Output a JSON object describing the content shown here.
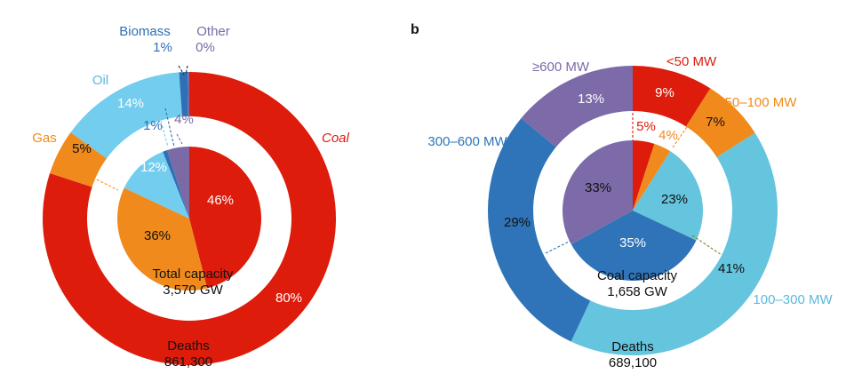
{
  "panel_b_label": "b",
  "chart_data": [
    {
      "type": "pie",
      "subtype": "nested-donut",
      "title": "",
      "center_label": "Total capacity",
      "center_value": "3,570 GW",
      "bottom_label": "Deaths",
      "bottom_value": "861,300",
      "outer": {
        "name": "Deaths",
        "slices": [
          {
            "label": "Coal",
            "value": 80,
            "pct_text": "80%",
            "color": "#dd1c0c",
            "label_color": "#dd1c0c",
            "italic": true
          },
          {
            "label": "Gas",
            "value": 5,
            "pct_text": "5%",
            "color": "#f08a1c",
            "label_color": "#f08a1c"
          },
          {
            "label": "Oil",
            "value": 14,
            "pct_text": "14%",
            "color": "#72cdee",
            "label_color": "#55b8e3"
          },
          {
            "label": "Biomass",
            "value": 1,
            "pct_text": "1%",
            "color": "#2f6fb5",
            "label_color": "#2f6fb5"
          },
          {
            "label": "Other",
            "value": 0,
            "pct_text": "0%",
            "color": "#7b6aa6",
            "label_color": "#7b6aa6"
          }
        ]
      },
      "inner": {
        "name": "Total capacity",
        "slices": [
          {
            "label": "Coal",
            "value": 46,
            "pct_text": "46%",
            "color": "#dd1c0c"
          },
          {
            "label": "Gas",
            "value": 36,
            "pct_text": "36%",
            "color": "#f08a1c"
          },
          {
            "label": "Oil",
            "value": 12,
            "pct_text": "12%",
            "color": "#72cdee"
          },
          {
            "label": "Biomass",
            "value": 1,
            "pct_text": "1%",
            "color": "#2f6fb5"
          },
          {
            "label": "Other",
            "value": 4,
            "pct_text": "4%",
            "color": "#7b6aa6"
          }
        ]
      }
    },
    {
      "type": "pie",
      "subtype": "nested-donut",
      "title": "",
      "center_label": "Coal capacity",
      "center_value": "1,658 GW",
      "bottom_label": "Deaths",
      "bottom_value": "689,100",
      "outer": {
        "name": "Deaths",
        "slices": [
          {
            "label": "<50 MW",
            "value": 9,
            "pct_text": "9%",
            "color": "#dd1c0c",
            "label_color": "#dd1c0c"
          },
          {
            "label": "50–100 MW",
            "value": 7,
            "pct_text": "7%",
            "color": "#f08a1c",
            "label_color": "#f08a1c"
          },
          {
            "label": "100–300 MW",
            "value": 41,
            "pct_text": "41%",
            "color": "#65c4de",
            "label_color": "#5ab9dc"
          },
          {
            "label": "300–600 MW",
            "value": 29,
            "pct_text": "29%",
            "color": "#2f74b8",
            "label_color": "#2f74b8"
          },
          {
            "label": "≥600 MW",
            "value": 13,
            "pct_text": "13%",
            "color": "#7d6aa8",
            "label_color": "#7d6aa8"
          }
        ]
      },
      "inner": {
        "name": "Coal capacity",
        "slices": [
          {
            "label": "<50 MW",
            "value": 5,
            "pct_text": "5%",
            "color": "#dd1c0c"
          },
          {
            "label": "50–100 MW",
            "value": 4,
            "pct_text": "4%",
            "color": "#f08a1c"
          },
          {
            "label": "100–300 MW",
            "value": 23,
            "pct_text": "23%",
            "color": "#65c4de"
          },
          {
            "label": "300–600 MW",
            "value": 35,
            "pct_text": "35%",
            "color": "#2f74b8"
          },
          {
            "label": "≥600 MW",
            "value": 33,
            "pct_text": "33%",
            "color": "#7d6aa8"
          }
        ]
      }
    }
  ]
}
